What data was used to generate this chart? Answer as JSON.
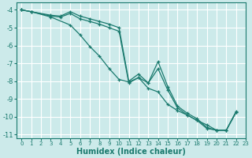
{
  "xlabel": "Humidex (Indice chaleur)",
  "background_color": "#cceaea",
  "grid_color": "#ffffff",
  "line_color": "#1a7a6e",
  "xlim": [
    -0.5,
    23
  ],
  "ylim": [
    -11.2,
    -3.6
  ],
  "xticks": [
    0,
    1,
    2,
    3,
    4,
    5,
    6,
    7,
    8,
    9,
    10,
    11,
    12,
    13,
    14,
    15,
    16,
    17,
    18,
    19,
    20,
    21,
    22,
    23
  ],
  "yticks": [
    -11,
    -10,
    -9,
    -8,
    -7,
    -6,
    -5,
    -4
  ],
  "series": [
    {
      "x": [
        0,
        1,
        3,
        4,
        5,
        6,
        7,
        8,
        9,
        10,
        11,
        12,
        13,
        14,
        15,
        16,
        17,
        18,
        19,
        20,
        21,
        22
      ],
      "y": [
        -4.0,
        -4.1,
        -4.3,
        -4.35,
        -4.1,
        -4.35,
        -4.5,
        -4.65,
        -4.8,
        -5.0,
        -8.0,
        -7.6,
        -8.1,
        -6.9,
        -8.3,
        -9.4,
        -9.8,
        -10.1,
        -10.6,
        -10.75,
        -10.75,
        -9.7
      ]
    },
    {
      "x": [
        0,
        1,
        3,
        4,
        5,
        6,
        7,
        8,
        9,
        10,
        11,
        12,
        13,
        14,
        15,
        16,
        17,
        18,
        19,
        20,
        21,
        22
      ],
      "y": [
        -4.0,
        -4.1,
        -4.35,
        -4.4,
        -4.2,
        -4.5,
        -4.65,
        -4.8,
        -5.0,
        -5.2,
        -8.1,
        -7.8,
        -8.1,
        -7.3,
        -8.5,
        -9.5,
        -9.9,
        -10.2,
        -10.65,
        -10.75,
        -10.75,
        -9.75
      ]
    },
    {
      "x": [
        0,
        1,
        3,
        5,
        6,
        7,
        8,
        9,
        10,
        11,
        12,
        13,
        14,
        15,
        16,
        17,
        18,
        19,
        20,
        21,
        22
      ],
      "y": [
        -4.0,
        -4.1,
        -4.4,
        -4.85,
        -5.4,
        -6.05,
        -6.6,
        -7.3,
        -7.9,
        -8.05,
        -7.8,
        -8.4,
        -8.6,
        -9.3,
        -9.65,
        -9.9,
        -10.2,
        -10.45,
        -10.75,
        -10.75,
        -9.75
      ]
    }
  ]
}
